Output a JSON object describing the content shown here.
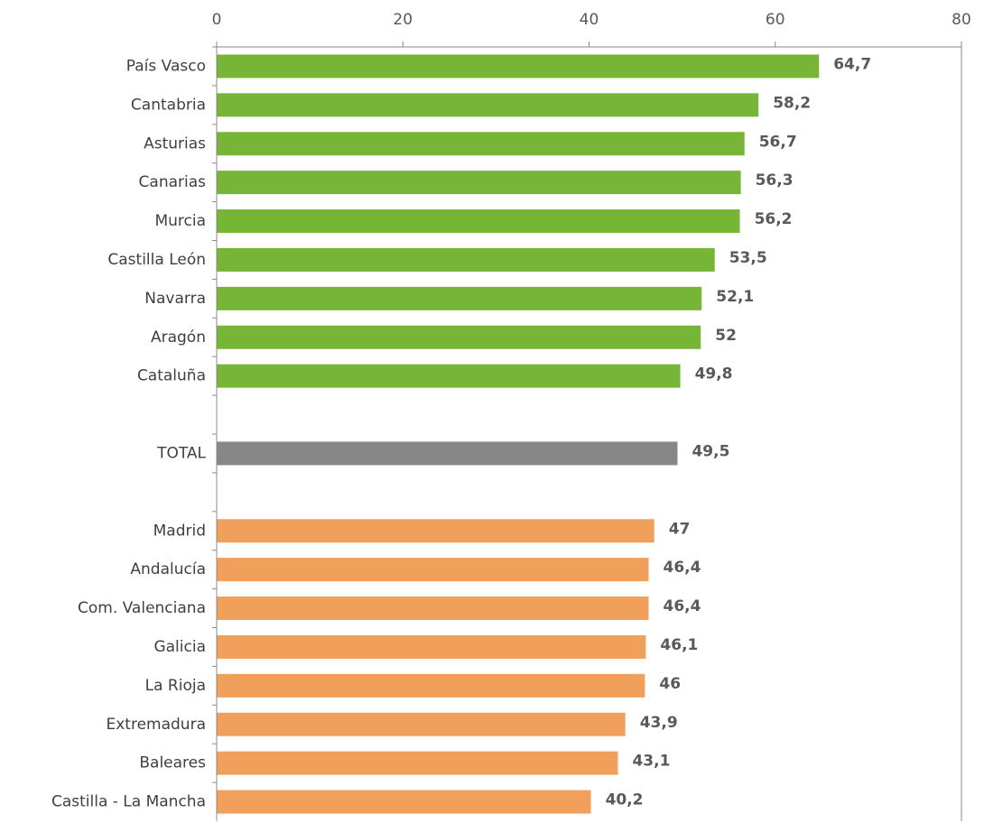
{
  "chart_data": {
    "type": "bar",
    "orientation": "horizontal",
    "categories": [
      "País Vasco",
      "Cantabria",
      "Asturias",
      "Canarias",
      "Murcia",
      "Castilla León",
      "Navarra",
      "Aragón",
      "Cataluña",
      null,
      "TOTAL",
      null,
      "Madrid",
      "Andalucía",
      "Com. Valenciana",
      "Galicia",
      "La Rioja",
      "Extremadura",
      "Baleares",
      "Castilla - La Mancha"
    ],
    "values": [
      64.7,
      58.2,
      56.7,
      56.3,
      56.2,
      53.5,
      52.1,
      52,
      49.8,
      null,
      49.5,
      null,
      47,
      46.4,
      46.4,
      46.1,
      46,
      43.9,
      43.1,
      40.2
    ],
    "value_labels": [
      "64,7",
      "58,2",
      "56,7",
      "56,3",
      "56,2",
      "53,5",
      "52,1",
      "52",
      "49,8",
      null,
      "49,5",
      null,
      "47",
      "46,4",
      "46,4",
      "46,1",
      "46",
      "43,9",
      "43,1",
      "40,2"
    ],
    "colors": [
      "#76b535",
      "#76b535",
      "#76b535",
      "#76b535",
      "#76b535",
      "#76b535",
      "#76b535",
      "#76b535",
      "#76b535",
      null,
      "#878787",
      null,
      "#f0a05a",
      "#f0a05a",
      "#f0a05a",
      "#f0a05a",
      "#f0a05a",
      "#f0a05a",
      "#f0a05a",
      "#f0a05a"
    ],
    "xlim": [
      0,
      80
    ],
    "xticks": [
      0,
      20,
      40,
      60,
      80
    ],
    "grid": false
  }
}
